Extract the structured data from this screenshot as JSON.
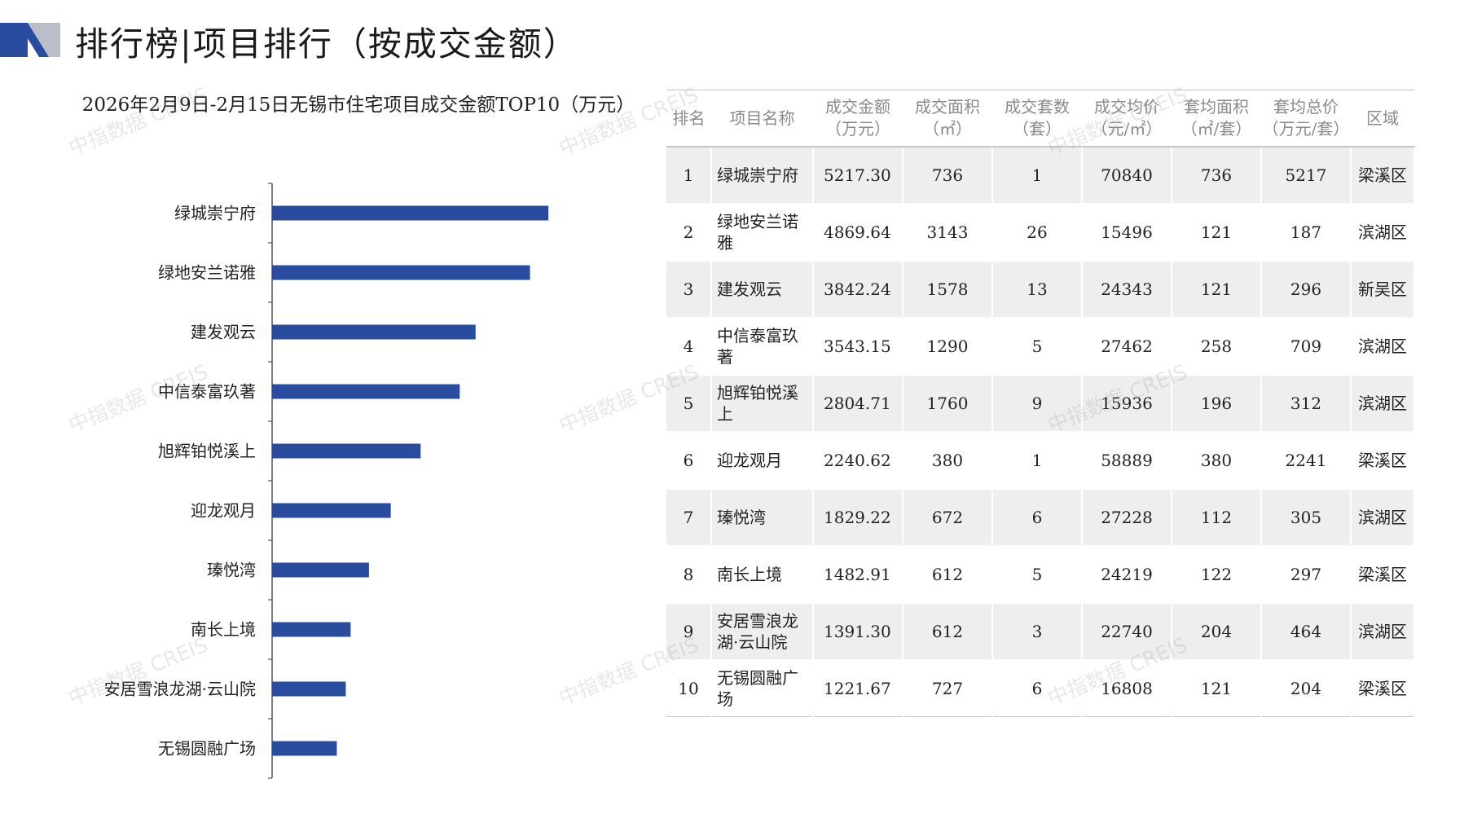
{
  "header": {
    "title": "排行榜|项目排行（按成交金额）",
    "logo_colors": [
      "#2a4c9e",
      "#b9bec8"
    ]
  },
  "chart_data": {
    "type": "bar",
    "orientation": "horizontal",
    "title": "2026年2月9日-2月15日无锡市住宅项目成交金额TOP10（万元）",
    "categories": [
      "绿城崇宁府",
      "绿地安兰诺雅",
      "建发观云",
      "中信泰富玖著",
      "旭辉铂悦溪上",
      "迎龙观月",
      "瑧悦湾",
      "南长上境",
      "安居雪浪龙湖·云山院",
      "无锡圆融广场"
    ],
    "values": [
      5217.3,
      4869.64,
      3842.24,
      3543.15,
      2804.71,
      2240.62,
      1829.22,
      1482.91,
      1391.3,
      1221.67
    ],
    "xlim": [
      0,
      6000
    ],
    "grid": false,
    "legend": "none",
    "bar_color": "#2a4c9e"
  },
  "table": {
    "headers": [
      [
        "排名"
      ],
      [
        "项目名称"
      ],
      [
        "成交金额",
        "（万元）"
      ],
      [
        "成交面积",
        "（㎡）"
      ],
      [
        "成交套数",
        "（套）"
      ],
      [
        "成交均价",
        "（元/㎡）"
      ],
      [
        "套均面积",
        "（㎡/套）"
      ],
      [
        "套均总价",
        "（万元/套）"
      ],
      [
        "区域"
      ]
    ],
    "rows": [
      [
        "1",
        "绿城崇宁府",
        "5217.30",
        "736",
        "1",
        "70840",
        "736",
        "5217",
        "梁溪区"
      ],
      [
        "2",
        "绿地安兰诺雅",
        "4869.64",
        "3143",
        "26",
        "15496",
        "121",
        "187",
        "滨湖区"
      ],
      [
        "3",
        "建发观云",
        "3842.24",
        "1578",
        "13",
        "24343",
        "121",
        "296",
        "新吴区"
      ],
      [
        "4",
        "中信泰富玖著",
        "3543.15",
        "1290",
        "5",
        "27462",
        "258",
        "709",
        "滨湖区"
      ],
      [
        "5",
        "旭辉铂悦溪上",
        "2804.71",
        "1760",
        "9",
        "15936",
        "196",
        "312",
        "滨湖区"
      ],
      [
        "6",
        "迎龙观月",
        "2240.62",
        "380",
        "1",
        "58889",
        "380",
        "2241",
        "梁溪区"
      ],
      [
        "7",
        "瑧悦湾",
        "1829.22",
        "672",
        "6",
        "27228",
        "112",
        "305",
        "滨湖区"
      ],
      [
        "8",
        "南长上境",
        "1482.91",
        "612",
        "5",
        "24219",
        "122",
        "297",
        "梁溪区"
      ],
      [
        "9",
        "安居雪浪龙湖·云山院",
        "1391.30",
        "612",
        "3",
        "22740",
        "204",
        "464",
        "滨湖区"
      ],
      [
        "10",
        "无锡圆融广场",
        "1221.67",
        "727",
        "6",
        "16808",
        "121",
        "204",
        "梁溪区"
      ]
    ]
  },
  "watermark": "中指数据 CREIS"
}
